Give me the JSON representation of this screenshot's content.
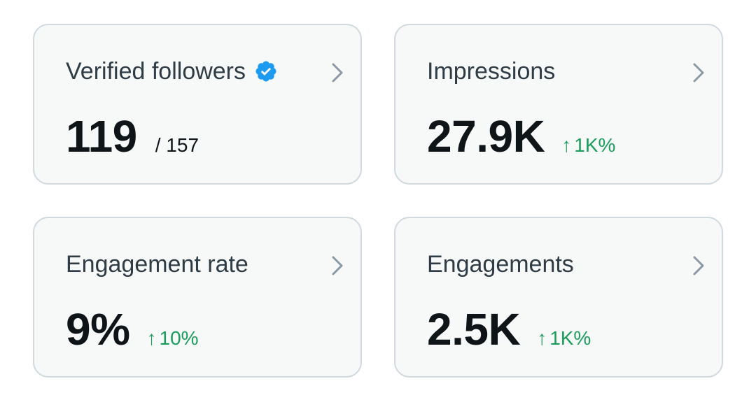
{
  "colors": {
    "card_background": "#f7f9f9",
    "card_border": "#cfd9de",
    "title_text": "#2f3b45",
    "value_text": "#0f1419",
    "positive_change": "#1a9c5b",
    "verified_badge": "#1d9bf0",
    "chevron": "#8b98a5"
  },
  "cards": [
    {
      "title": "Verified followers",
      "verified_icon": "verified-badge-icon",
      "value": "119",
      "sub_total": "/ 157"
    },
    {
      "title": "Impressions",
      "value": "27.9K",
      "change_arrow": "↑",
      "change": "1K%"
    },
    {
      "title": "Engagement rate",
      "value": "9%",
      "change_arrow": "↑",
      "change": "10%"
    },
    {
      "title": "Engagements",
      "value": "2.5K",
      "change_arrow": "↑",
      "change": "1K%"
    }
  ]
}
